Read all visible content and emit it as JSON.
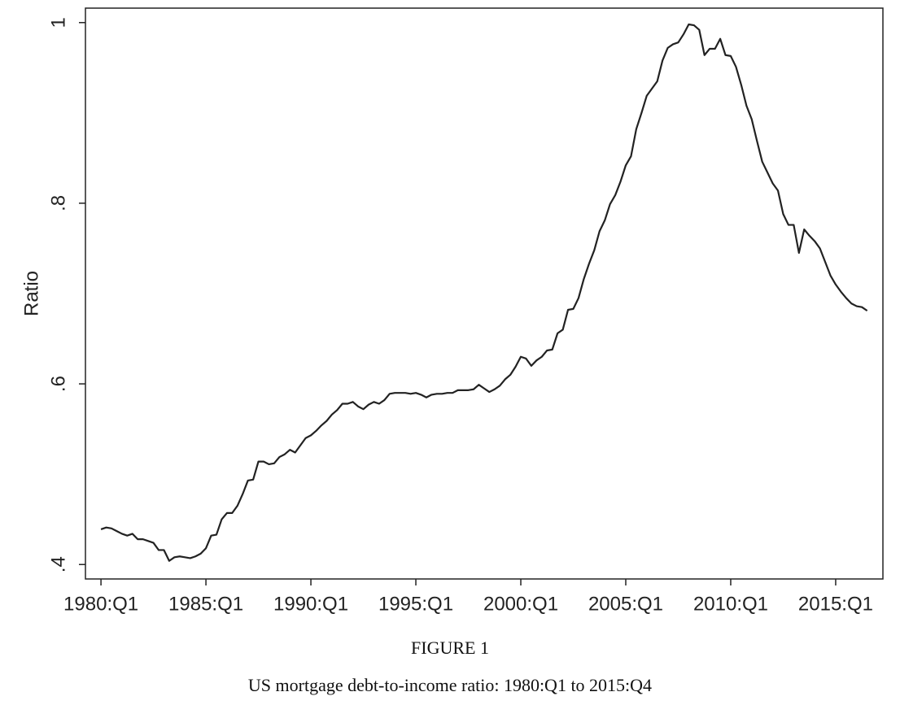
{
  "chart_data": {
    "type": "line",
    "y_label": "Ratio",
    "caption_title": "FIGURE 1",
    "caption": "US mortgage debt-to-income ratio: 1980:Q1 to 2015:Q4",
    "xlim": [
      1979.26,
      2017.25
    ],
    "ylim": [
      0.384,
      1.016
    ],
    "xticks": [
      {
        "value": 1980,
        "label": "1980:Q1"
      },
      {
        "value": 1985,
        "label": "1985:Q1"
      },
      {
        "value": 1990,
        "label": "1990:Q1"
      },
      {
        "value": 1995,
        "label": "1995:Q1"
      },
      {
        "value": 2000,
        "label": "2000:Q1"
      },
      {
        "value": 2005,
        "label": "2005:Q1"
      },
      {
        "value": 2010,
        "label": "2010:Q1"
      },
      {
        "value": 2015,
        "label": "2015:Q1"
      }
    ],
    "yticks": [
      {
        "value": 0.4,
        "label": ".4"
      },
      {
        "value": 0.6,
        "label": ".6"
      },
      {
        "value": 0.8,
        "label": ".8"
      },
      {
        "value": 1,
        "label": "1"
      }
    ],
    "grid": false,
    "color": "#222222",
    "x": [
      1980,
      1980.25,
      1980.5,
      1980.75,
      1981,
      1981.25,
      1981.5,
      1981.75,
      1982,
      1982.25,
      1982.5,
      1982.75,
      1983,
      1983.25,
      1983.5,
      1983.75,
      1984,
      1984.25,
      1984.5,
      1984.75,
      1985,
      1985.25,
      1985.5,
      1985.75,
      1986,
      1986.25,
      1986.5,
      1986.75,
      1987,
      1987.25,
      1987.5,
      1987.75,
      1988,
      1988.25,
      1988.5,
      1988.75,
      1989,
      1989.25,
      1989.5,
      1989.75,
      1990,
      1990.25,
      1990.5,
      1990.75,
      1991,
      1991.25,
      1991.5,
      1991.75,
      1992,
      1992.25,
      1992.5,
      1992.75,
      1993,
      1993.25,
      1993.5,
      1993.75,
      1994,
      1994.25,
      1994.5,
      1994.75,
      1995,
      1995.25,
      1995.5,
      1995.75,
      1996,
      1996.25,
      1996.5,
      1996.75,
      1997,
      1997.25,
      1997.5,
      1997.75,
      1998,
      1998.25,
      1998.5,
      1998.75,
      1999,
      1999.25,
      1999.5,
      1999.75,
      2000,
      2000.25,
      2000.5,
      2000.75,
      2001,
      2001.25,
      2001.5,
      2001.75,
      2002,
      2002.25,
      2002.5,
      2002.75,
      2003,
      2003.25,
      2003.5,
      2003.75,
      2004,
      2004.25,
      2004.5,
      2004.75,
      2005,
      2005.25,
      2005.5,
      2005.75,
      2006,
      2006.25,
      2006.5,
      2006.75,
      2007,
      2007.25,
      2007.5,
      2007.75,
      2008,
      2008.25,
      2008.5,
      2008.75,
      2009,
      2009.25,
      2009.5,
      2009.75,
      2010,
      2010.25,
      2010.5,
      2010.75,
      2011,
      2011.25,
      2011.5,
      2011.75,
      2012,
      2012.25,
      2012.5,
      2012.75,
      2013,
      2013.25,
      2013.5,
      2013.75,
      2014,
      2014.25,
      2014.5,
      2014.75,
      2015,
      2015.25,
      2015.5,
      2015.75,
      2016,
      2016.25,
      2016.5
    ],
    "values": [
      0.439,
      0.441,
      0.44,
      0.437,
      0.434,
      0.432,
      0.434,
      0.428,
      0.428,
      0.426,
      0.424,
      0.416,
      0.416,
      0.404,
      0.408,
      0.409,
      0.408,
      0.407,
      0.409,
      0.412,
      0.418,
      0.432,
      0.433,
      0.45,
      0.457,
      0.457,
      0.465,
      0.478,
      0.493,
      0.494,
      0.514,
      0.514,
      0.511,
      0.512,
      0.519,
      0.522,
      0.527,
      0.524,
      0.532,
      0.54,
      0.543,
      0.548,
      0.554,
      0.559,
      0.566,
      0.571,
      0.578,
      0.578,
      0.58,
      0.575,
      0.572,
      0.577,
      0.58,
      0.578,
      0.582,
      0.589,
      0.59,
      0.59,
      0.59,
      0.589,
      0.59,
      0.588,
      0.585,
      0.588,
      0.589,
      0.589,
      0.59,
      0.59,
      0.593,
      0.593,
      0.593,
      0.594,
      0.599,
      0.595,
      0.591,
      0.594,
      0.598,
      0.605,
      0.61,
      0.619,
      0.63,
      0.628,
      0.62,
      0.626,
      0.63,
      0.637,
      0.638,
      0.656,
      0.66,
      0.682,
      0.683,
      0.695,
      0.716,
      0.733,
      0.748,
      0.769,
      0.781,
      0.799,
      0.809,
      0.824,
      0.842,
      0.852,
      0.882,
      0.9,
      0.919,
      0.927,
      0.935,
      0.958,
      0.972,
      0.976,
      0.978,
      0.987,
      0.998,
      0.997,
      0.992,
      0.964,
      0.971,
      0.971,
      0.982,
      0.964,
      0.963,
      0.951,
      0.931,
      0.908,
      0.893,
      0.869,
      0.846,
      0.834,
      0.822,
      0.814,
      0.788,
      0.776,
      0.776,
      0.745,
      0.771,
      0.764,
      0.758,
      0.75,
      0.735,
      0.72,
      0.71,
      0.702,
      0.695,
      0.689,
      0.686,
      0.685,
      0.681
    ]
  }
}
